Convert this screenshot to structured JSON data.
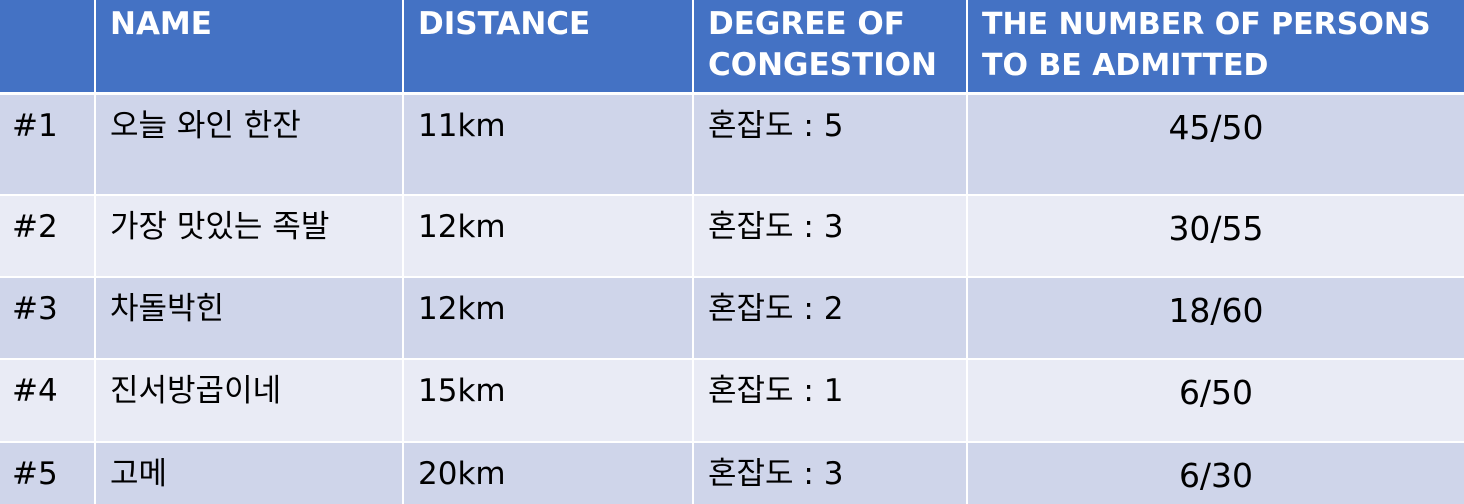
{
  "table": {
    "headers": [
      "",
      "NAME",
      "DISTANCE",
      "DEGREE OF CONGESTION",
      "THE NUMBER OF PERSONS TO BE ADMITTED"
    ],
    "rows": [
      [
        "#1",
        "오늘 와인 한잔",
        "11km",
        "혼잡도 : 5",
        "45/50"
      ],
      [
        "#2",
        "가장 맛있는 족발",
        "12km",
        "혼잡도 : 3",
        "30/55"
      ],
      [
        "#3",
        "차돌박힌",
        "12km",
        "혼잡도 : 2",
        "18/60"
      ],
      [
        "#4",
        "진서방곱이네",
        "15km",
        "혼잡도 : 1",
        "6/50"
      ],
      [
        "#5",
        "고메",
        "20km",
        "혼잡도 : 3",
        "6/30"
      ]
    ]
  },
  "colors": {
    "header_bg": "#4472c4",
    "row_odd_bg": "#cfd5ea",
    "row_even_bg": "#e9ebf5",
    "header_text": "#ffffff"
  }
}
